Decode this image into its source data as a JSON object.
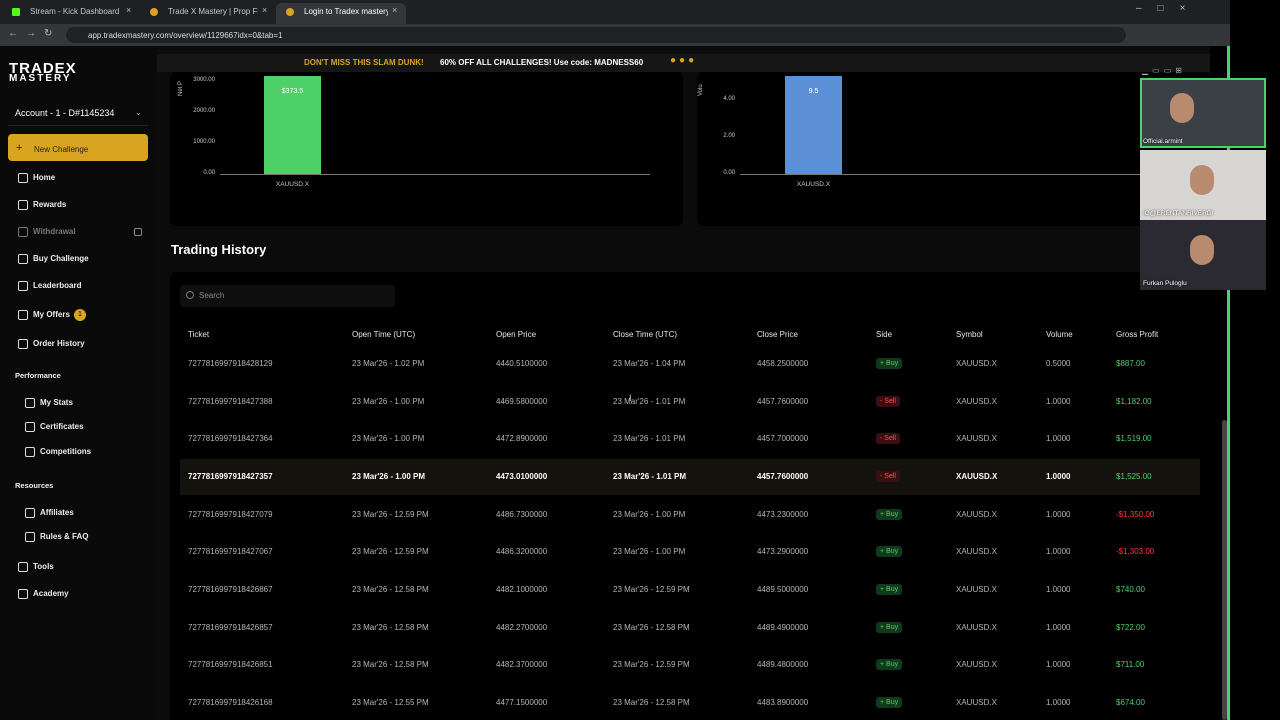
{
  "browser": {
    "tabs": [
      "Stream - Kick Dashboard",
      "Trade X Mastery | Prop Firm W...",
      "Login to Tradex mastery"
    ],
    "url": "app.tradexmastery.com/overview/1129667idx=0&tab=1"
  },
  "banner": {
    "headline": "DON'T MISS THIS SLAM DUNK!",
    "offer": "60% OFF ALL CHALLENGES! Use code: MADNESS60"
  },
  "sidebar": {
    "logo": [
      "TRADEX",
      "MASTERY"
    ],
    "account": "Account - 1 - D#1145234",
    "new_challenge": "New Challenge",
    "nav_main": [
      "Home",
      "Rewards",
      "Withdrawal",
      "Buy Challenge",
      "Leaderboard",
      "My Offers",
      "Order History"
    ],
    "offers_badge": 1,
    "performance": {
      "title": "Performance",
      "items": [
        "My Stats",
        "Certificates",
        "Competitions"
      ]
    },
    "resources": {
      "title": "Resources",
      "items": [
        "Affiliates",
        "Rules & FAQ"
      ]
    },
    "nav_bottom": [
      "Tools",
      "Academy"
    ]
  },
  "charts": [
    {
      "axis_label": "Net P",
      "yticks": [
        "3000.00",
        "2000.00",
        "1000.00",
        "0.00"
      ],
      "bar_label": "$373.5",
      "category": "XAUUSD.X"
    },
    {
      "axis_label": "Volu",
      "yticks": [
        "4.00",
        "2.00",
        "0.00"
      ],
      "bar_label": "9.5",
      "category": "XAUUSD.X"
    }
  ],
  "trading_history": {
    "title": "Trading History",
    "search_placeholder": "Search",
    "columns": [
      "Ticket",
      "Open Time (UTC)",
      "Open Price",
      "Close Time (UTC)",
      "Close Price",
      "Side",
      "Symbol",
      "Volume",
      "Gross Profit"
    ],
    "rows": [
      [
        "7277816997918428129",
        "23 Mar'26 - 1.02 PM",
        "4440.5100000",
        "23 Mar'26 - 1.04 PM",
        "4458.2500000",
        "+ Buy",
        "XAUUSD.X",
        "0.5000",
        "$887.00"
      ],
      [
        "7277816997918427388",
        "23 Mar'26 - 1.00 PM",
        "4469.5800000",
        "23 Mar'26 - 1.01 PM",
        "4457.7600000",
        "- Sell",
        "XAUUSD.X",
        "1.0000",
        "$1,182.00"
      ],
      [
        "7277816997918427364",
        "23 Mar'26 - 1.00 PM",
        "4472.8900000",
        "23 Mar'26 - 1.01 PM",
        "4457.7000000",
        "- Sell",
        "XAUUSD.X",
        "1.0000",
        "$1,519.00"
      ],
      [
        "7277816997918427357",
        "23 Mar'26 - 1.00 PM",
        "4473.0100000",
        "23 Mar'26 - 1.01 PM",
        "4457.7600000",
        "- Sell",
        "XAUUSD.X",
        "1.0000",
        "$1,525.00"
      ],
      [
        "7277816997918427079",
        "23 Mar'26 - 12.59 PM",
        "4486.7300000",
        "23 Mar'26 - 1.00 PM",
        "4473.2300000",
        "+ Buy",
        "XAUUSD.X",
        "1.0000",
        "-$1,350.00"
      ],
      [
        "7277816997918427067",
        "23 Mar'26 - 12.59 PM",
        "4486.3200000",
        "23 Mar'26 - 1.00 PM",
        "4473.2900000",
        "+ Buy",
        "XAUUSD.X",
        "1.0000",
        "-$1,303.00"
      ],
      [
        "7277816997918426867",
        "23 Mar'26 - 12.58 PM",
        "4482.1000000",
        "23 Mar'26 - 12.59 PM",
        "4489.5000000",
        "+ Buy",
        "XAUUSD.X",
        "1.0000",
        "$740.00"
      ],
      [
        "7277816997918426857",
        "23 Mar'26 - 12.58 PM",
        "4482.2700000",
        "23 Mar'26 - 12.58 PM",
        "4489.4900000",
        "+ Buy",
        "XAUUSD.X",
        "1.0000",
        "$722.00"
      ],
      [
        "7277816997918426851",
        "23 Mar'26 - 12.58 PM",
        "4482.3700000",
        "23 Mar'26 - 12.59 PM",
        "4489.4800000",
        "+ Buy",
        "XAUUSD.X",
        "1.0000",
        "$711.00"
      ],
      [
        "7277816997918426168",
        "23 Mar'26 - 12.55 PM",
        "4477.1500000",
        "23 Mar'26 - 12.58 PM",
        "4483.8900000",
        "+ Buy",
        "XAUUSD.X",
        "1.0000",
        "$674.00"
      ]
    ]
  },
  "video": {
    "participants": [
      "Official.armint",
      "IG@ERENTANRIVERDI",
      "Furkan Puloglu"
    ]
  }
}
